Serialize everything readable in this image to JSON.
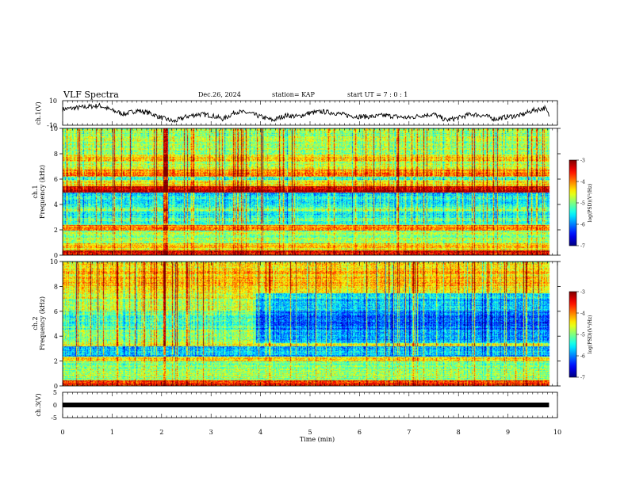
{
  "header": {
    "title": "VLF Spectra",
    "date": "Dec.26, 2024",
    "station": "station= KAP",
    "start": "start  UT =   7 : 0  : 1"
  },
  "chart_data": [
    {
      "type": "line",
      "name": "ch1-waveform",
      "ylabel": "ch.1(V)",
      "ylim": [
        -10,
        10
      ],
      "yticks": [
        "10",
        "-10"
      ],
      "xlim": [
        0,
        10
      ],
      "x": [
        0.0,
        0.25,
        0.5,
        0.75,
        1.0,
        1.25,
        1.5,
        1.75,
        2.0,
        2.25,
        2.5,
        2.75,
        3.0,
        3.25,
        3.5,
        3.75,
        4.0,
        4.25,
        4.5,
        4.75,
        5.0,
        5.25,
        5.5,
        5.75,
        6.0,
        6.25,
        6.5,
        6.75,
        7.0,
        7.25,
        7.5,
        7.75,
        8.0,
        8.25,
        8.5,
        8.75,
        9.0,
        9.25,
        9.5,
        9.75,
        9.83
      ],
      "y": [
        3,
        4,
        5,
        6,
        2,
        -1,
        2,
        0,
        -4,
        -7,
        -3,
        -1,
        -2,
        -5,
        1,
        0,
        -3,
        -6,
        -2,
        -3,
        0,
        1,
        0,
        -2,
        -3,
        -3,
        -2,
        -3,
        -4,
        -2,
        -1,
        -6,
        -4,
        -1,
        -2,
        -5,
        -3,
        -2,
        2,
        4,
        -2
      ]
    },
    {
      "type": "heatmap",
      "name": "ch1-spectrogram",
      "ylabel": "ch.1\nFrequency  (kHz)",
      "xlim": [
        0,
        9.83
      ],
      "ylim": [
        0,
        10
      ],
      "yticks": [
        "0",
        "2",
        "4",
        "6",
        "8",
        "10"
      ],
      "colorbar": {
        "label": "log(PSD)(V²/Hz)",
        "range": [
          -7,
          -3
        ],
        "ticks": [
          "-3",
          "-4",
          "-5",
          "-6",
          "-7"
        ]
      },
      "time_features_min": [
        {
          "t": 2.05,
          "type": "broadband-spike"
        },
        {
          "t": 2.1,
          "type": "broadband-spike"
        }
      ],
      "bands_khz": [
        {
          "lo": 0.0,
          "hi": 0.4,
          "level": -3.4
        },
        {
          "lo": 0.4,
          "hi": 1.0,
          "level": -4.4
        },
        {
          "lo": 1.0,
          "hi": 2.0,
          "level": -4.9
        },
        {
          "lo": 2.0,
          "hi": 2.4,
          "level": -4.0
        },
        {
          "lo": 2.4,
          "hi": 3.0,
          "level": -5.2
        },
        {
          "lo": 3.0,
          "hi": 3.5,
          "level": -5.6
        },
        {
          "lo": 3.5,
          "hi": 3.8,
          "level": -5.0
        },
        {
          "lo": 3.8,
          "hi": 4.7,
          "level": -5.5
        },
        {
          "lo": 4.7,
          "hi": 5.0,
          "level": -5.7
        },
        {
          "lo": 5.0,
          "hi": 5.5,
          "level": -3.3
        },
        {
          "lo": 5.5,
          "hi": 6.0,
          "level": -4.5
        },
        {
          "lo": 6.0,
          "hi": 6.2,
          "level": -5.4
        },
        {
          "lo": 6.2,
          "hi": 6.8,
          "level": -4.0
        },
        {
          "lo": 6.8,
          "hi": 7.4,
          "level": -4.7
        },
        {
          "lo": 7.4,
          "hi": 8.0,
          "level": -4.4
        },
        {
          "lo": 8.0,
          "hi": 10.0,
          "level": -4.9
        }
      ]
    },
    {
      "type": "heatmap",
      "name": "ch2-spectrogram",
      "ylabel": "ch.2\nFrequency  (kHz)",
      "xlim": [
        0,
        9.83
      ],
      "ylim": [
        0,
        10
      ],
      "yticks": [
        "0",
        "2",
        "4",
        "6",
        "8",
        "10"
      ],
      "colorbar": {
        "label": "log(PSD)(V²/Hz)",
        "range": [
          -7,
          -3
        ],
        "ticks": [
          "-3",
          "-4",
          "-5",
          "-6",
          "-7"
        ]
      },
      "time_features_min": [
        {
          "t": 2.05,
          "type": "broadband-spike"
        },
        {
          "t": 3.9,
          "type": "intensity-step"
        }
      ],
      "bands_khz": [
        {
          "lo": 0.0,
          "hi": 0.5,
          "level": -3.6
        },
        {
          "lo": 0.5,
          "hi": 1.5,
          "level": -4.9
        },
        {
          "lo": 1.5,
          "hi": 2.0,
          "level": -5.0
        },
        {
          "lo": 2.0,
          "hi": 2.4,
          "level": -4.3
        },
        {
          "lo": 2.4,
          "hi": 3.2,
          "level": -5.8
        },
        {
          "lo": 3.2,
          "hi": 3.6,
          "level": -4.6
        },
        {
          "lo": 3.6,
          "hi": 4.6,
          "level": -5.0
        },
        {
          "lo": 4.6,
          "hi": 6.0,
          "level": -5.2
        },
        {
          "lo": 6.0,
          "hi": 7.0,
          "level": -4.8
        },
        {
          "lo": 7.0,
          "hi": 8.0,
          "level": -4.6
        },
        {
          "lo": 8.0,
          "hi": 10.0,
          "level": -4.3
        }
      ]
    },
    {
      "type": "line",
      "name": "ch3-waveform",
      "ylabel": "ch.3(V)",
      "ylim": [
        -5,
        5
      ],
      "yticks": [
        "5",
        "0",
        "-5"
      ],
      "xlim": [
        0,
        10
      ],
      "x": [
        0,
        9.83
      ],
      "y": [
        0,
        0
      ]
    }
  ],
  "xaxis": {
    "label": "Time  (min)",
    "ticks": [
      "0",
      "1",
      "2",
      "3",
      "4",
      "5",
      "6",
      "7",
      "8",
      "9",
      "10"
    ],
    "range": [
      0,
      10
    ]
  }
}
